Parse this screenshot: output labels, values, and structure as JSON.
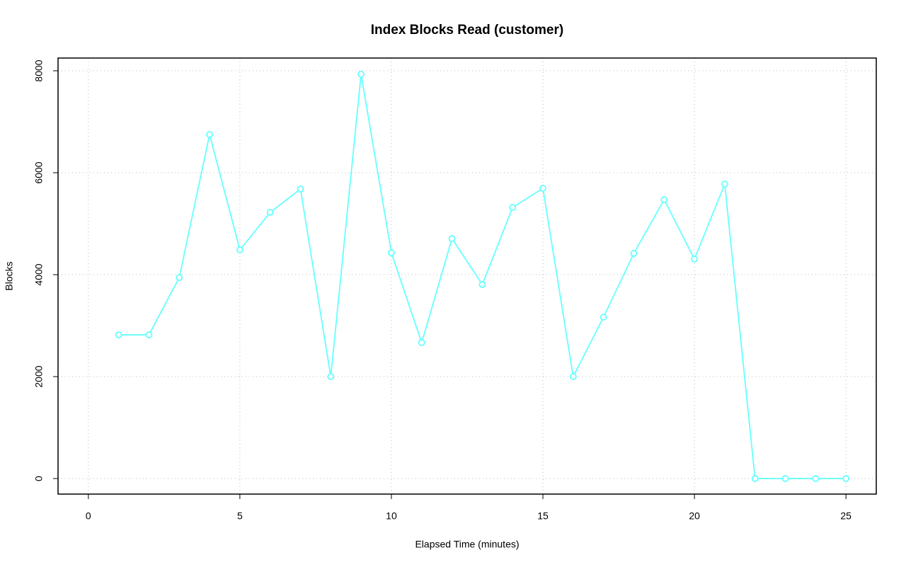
{
  "chart_data": {
    "type": "line",
    "title": "Index Blocks Read (customer)",
    "x_label": "Elapsed Time (minutes)",
    "y_label": "Blocks",
    "x": [
      1,
      2,
      3,
      4,
      5,
      6,
      7,
      8,
      9,
      10,
      11,
      12,
      13,
      14,
      15,
      16,
      17,
      18,
      19,
      20,
      21,
      22,
      23,
      24,
      25
    ],
    "series": [
      {
        "color": "#66ffff",
        "values": [
          2819,
          2819,
          3944,
          6750,
          4486,
          5222,
          5681,
          2000,
          7931,
          4431,
          2667,
          4708,
          3806,
          5319,
          5694,
          2000,
          3167,
          4417,
          5472,
          4306,
          5778,
          0,
          0,
          0,
          0
        ]
      }
    ],
    "xlim": [
      -1,
      26
    ],
    "xticks": [
      0,
      5,
      10,
      15,
      20,
      25
    ],
    "ylim": [
      -305,
      8250
    ],
    "yticks": [
      0,
      2000,
      4000,
      6000,
      8000
    ],
    "grid": true
  }
}
